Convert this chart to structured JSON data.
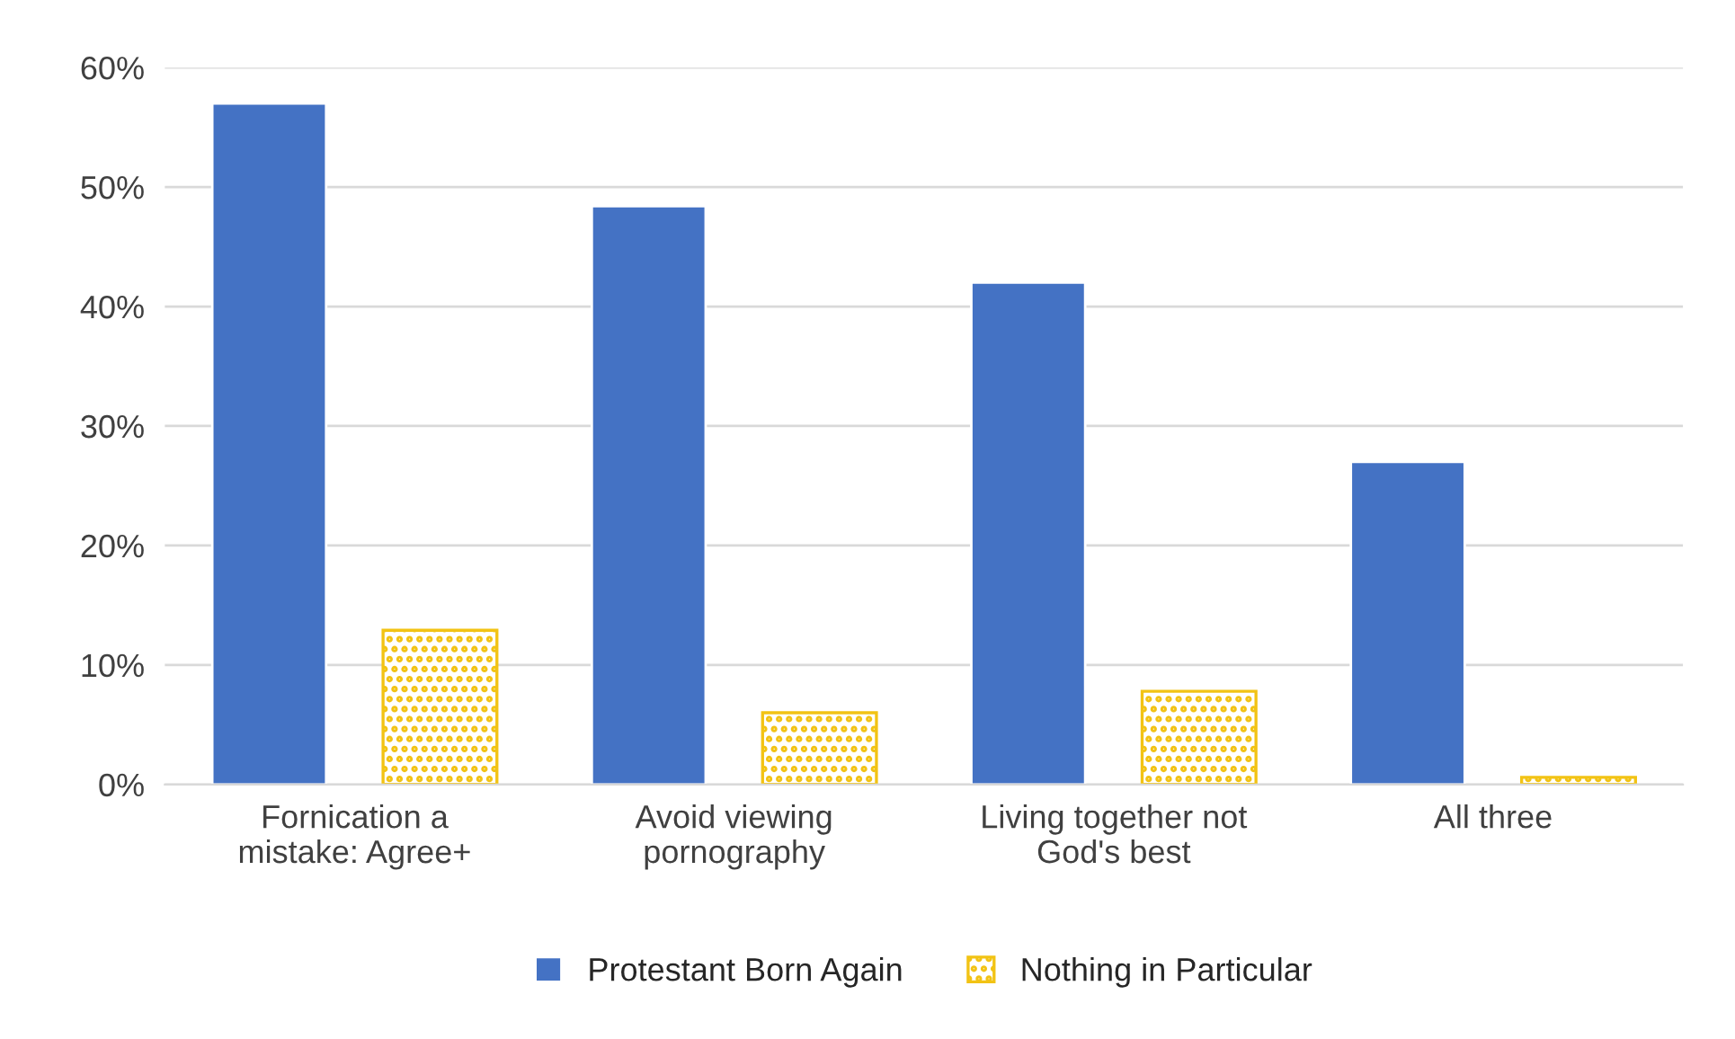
{
  "chart_data": {
    "type": "bar",
    "categories": [
      "Fornication a\nmistake: Agree+",
      "Avoid viewing\npornography",
      "Living together not\nGod's best",
      "All three"
    ],
    "series": [
      {
        "name": "Protestant Born Again",
        "color": "#4472c4",
        "values": [
          57,
          48.4,
          42,
          27
        ]
      },
      {
        "name": "Nothing in Particular",
        "color": "#f2c314",
        "values": [
          12.9,
          6,
          7.8,
          0.6
        ]
      }
    ],
    "ylim": [
      0,
      60
    ],
    "yticks": [
      {
        "value": 0,
        "label": "0%"
      },
      {
        "value": 10,
        "label": "10%"
      },
      {
        "value": 20,
        "label": "20%"
      },
      {
        "value": 30,
        "label": "30%"
      },
      {
        "value": 40,
        "label": "40%"
      },
      {
        "value": 50,
        "label": "50%"
      },
      {
        "value": 60,
        "label": "60%"
      }
    ],
    "grid": "y",
    "legend": "bottom"
  }
}
